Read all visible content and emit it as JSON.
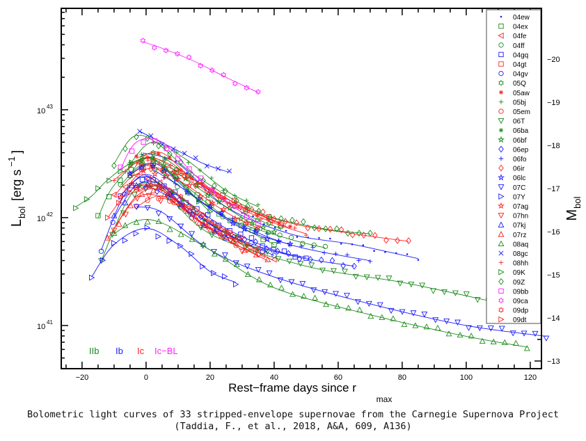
{
  "chart_data": {
    "type": "scatter",
    "title": "",
    "xlabel": "Rest−frame days since r",
    "xlabel_sub": "max",
    "ylabel": "L",
    "ylabel_sub": "bol",
    "ylabel_units": "[erg s",
    "ylabel_exp": "−1",
    "ylabel_close": "]",
    "y2label": "M",
    "y2label_sub": "bol",
    "xlim": [
      -26.5,
      123.5
    ],
    "ylog_lim": [
      40.6,
      43.94
    ],
    "yscale": "log",
    "xticks": [
      -20,
      0,
      20,
      40,
      60,
      80,
      100,
      120
    ],
    "yticks": [
      {
        "base": "10",
        "exp": "43",
        "log": 43
      },
      {
        "base": "10",
        "exp": "42",
        "log": 42
      },
      {
        "base": "10",
        "exp": "41",
        "log": 41
      }
    ],
    "y2ticks": [
      -20,
      -19,
      -18,
      -17,
      -16,
      -15,
      -14,
      -13
    ],
    "type_labels": [
      {
        "text": "IIb",
        "color": "#1a8a1a"
      },
      {
        "text": "Ib",
        "color": "#1a1aff"
      },
      {
        "text": "Ic",
        "color": "#ff2020"
      },
      {
        "text": "Ic−BL",
        "color": "#ff20ff"
      }
    ],
    "legend_position": "top-right",
    "series": [
      {
        "name": "04ew",
        "color": "#1a1aff",
        "marker": "dot",
        "points": [
          [
            -1,
            42.6
          ],
          [
            10,
            42.5
          ],
          [
            25,
            42.1
          ],
          [
            45,
            41.85
          ],
          [
            65,
            41.75
          ],
          [
            85,
            41.62
          ]
        ]
      },
      {
        "name": "04ex",
        "color": "#1a8a1a",
        "marker": "square",
        "points": [
          [
            -15,
            42.0
          ],
          [
            -10,
            42.3
          ],
          [
            0,
            42.55
          ],
          [
            10,
            42.35
          ],
          [
            25,
            42.0
          ],
          [
            40,
            41.75
          ]
        ]
      },
      {
        "name": "04fe",
        "color": "#ff2020",
        "marker": "tri-left",
        "points": [
          [
            -10,
            42.2
          ],
          [
            -3,
            42.4
          ],
          [
            5,
            42.3
          ],
          [
            15,
            42.0
          ],
          [
            30,
            41.75
          ],
          [
            40,
            41.6
          ]
        ]
      },
      {
        "name": "04ff",
        "color": "#1a8a1a",
        "marker": "circle",
        "points": [
          [
            -8,
            42.3
          ],
          [
            0,
            42.5
          ],
          [
            10,
            42.3
          ],
          [
            25,
            42.0
          ],
          [
            45,
            41.8
          ],
          [
            56,
            41.72
          ]
        ]
      },
      {
        "name": "04gq",
        "color": "#1a1aff",
        "marker": "square",
        "points": [
          [
            -8,
            42.2
          ],
          [
            0,
            42.4
          ],
          [
            10,
            42.2
          ],
          [
            25,
            41.9
          ],
          [
            40,
            41.7
          ],
          [
            50,
            41.63
          ]
        ]
      },
      {
        "name": "04gt",
        "color": "#ff2020",
        "marker": "square",
        "points": [
          [
            -5,
            42.4
          ],
          [
            3,
            42.5
          ],
          [
            15,
            42.35
          ],
          [
            30,
            42.1
          ],
          [
            42,
            41.95
          ]
        ]
      },
      {
        "name": "04gv",
        "color": "#1a1aff",
        "marker": "circle",
        "points": [
          [
            -14,
            41.7
          ],
          [
            -7,
            42.2
          ],
          [
            0,
            42.38
          ],
          [
            10,
            42.15
          ],
          [
            25,
            41.85
          ],
          [
            40,
            41.65
          ]
        ]
      },
      {
        "name": "05Q",
        "color": "#1a8a1a",
        "marker": "hex",
        "points": [
          [
            -5,
            42.4
          ],
          [
            2,
            42.6
          ],
          [
            15,
            42.35
          ],
          [
            30,
            42.05
          ],
          [
            42,
            41.9
          ]
        ]
      },
      {
        "name": "05aw",
        "color": "#ff2020",
        "marker": "asterisk",
        "points": [
          [
            -3,
            42.55
          ],
          [
            5,
            42.6
          ],
          [
            15,
            42.35
          ],
          [
            30,
            42.1
          ],
          [
            45,
            41.9
          ]
        ]
      },
      {
        "name": "05bj",
        "color": "#1a8a1a",
        "marker": "plus",
        "points": [
          [
            -5,
            42.5
          ],
          [
            2,
            42.7
          ],
          [
            12,
            42.55
          ],
          [
            25,
            42.25
          ],
          [
            35,
            42.1
          ]
        ]
      },
      {
        "name": "05em",
        "color": "#ff2020",
        "marker": "circle",
        "points": [
          [
            -3,
            42.1
          ],
          [
            5,
            42.2
          ],
          [
            15,
            42.0
          ],
          [
            25,
            41.8
          ],
          [
            35,
            41.65
          ]
        ]
      },
      {
        "name": "06T",
        "color": "#1a8a1a",
        "marker": "tri-down",
        "points": [
          [
            -14,
            41.6
          ],
          [
            -5,
            42.2
          ],
          [
            3,
            42.3
          ],
          [
            20,
            41.85
          ],
          [
            50,
            41.55
          ],
          [
            80,
            41.4
          ],
          [
            107,
            41.23
          ]
        ]
      },
      {
        "name": "06ba",
        "color": "#1a8a1a",
        "marker": "asterisk",
        "points": [
          [
            -2,
            42.3
          ],
          [
            8,
            42.25
          ],
          [
            20,
            41.95
          ],
          [
            35,
            41.7
          ]
        ]
      },
      {
        "name": "06bf",
        "color": "#1a8a1a",
        "marker": "star",
        "points": [
          [
            -5,
            42.5
          ],
          [
            3,
            42.55
          ],
          [
            15,
            42.3
          ],
          [
            30,
            42.0
          ],
          [
            40,
            41.85
          ]
        ]
      },
      {
        "name": "06ep",
        "color": "#1a1aff",
        "marker": "diamond",
        "points": [
          [
            0,
            42.3
          ],
          [
            10,
            42.15
          ],
          [
            25,
            41.85
          ],
          [
            45,
            41.65
          ],
          [
            65,
            41.55
          ]
        ]
      },
      {
        "name": "06fo",
        "color": "#1a1aff",
        "marker": "plus",
        "points": [
          [
            2,
            42.45
          ],
          [
            10,
            42.3
          ],
          [
            25,
            42.0
          ],
          [
            45,
            41.75
          ],
          [
            70,
            41.6
          ]
        ]
      },
      {
        "name": "06ir",
        "color": "#ff2020",
        "marker": "diamond",
        "points": [
          [
            -2,
            42.5
          ],
          [
            10,
            42.4
          ],
          [
            25,
            42.15
          ],
          [
            45,
            41.95
          ],
          [
            65,
            41.85
          ],
          [
            82,
            41.78
          ]
        ]
      },
      {
        "name": "06lc",
        "color": "#1a1aff",
        "marker": "star",
        "points": [
          [
            -5,
            42.4
          ],
          [
            3,
            42.5
          ],
          [
            15,
            42.2
          ],
          [
            30,
            41.9
          ],
          [
            45,
            41.75
          ]
        ]
      },
      {
        "name": "07C",
        "color": "#1a1aff",
        "marker": "tri-down",
        "points": [
          [
            -3,
            42.1
          ],
          [
            5,
            42.05
          ],
          [
            20,
            41.7
          ],
          [
            40,
            41.45
          ],
          [
            70,
            41.2
          ],
          [
            100,
            41.0
          ],
          [
            125,
            40.9
          ]
        ]
      },
      {
        "name": "07Y",
        "color": "#1a1aff",
        "marker": "tri-right",
        "points": [
          [
            -17,
            41.45
          ],
          [
            -10,
            41.75
          ],
          [
            0,
            41.9
          ],
          [
            10,
            41.75
          ],
          [
            20,
            41.5
          ],
          [
            28,
            41.4
          ]
        ]
      },
      {
        "name": "07ag",
        "color": "#ff2020",
        "marker": "star",
        "points": [
          [
            -8,
            42.2
          ],
          [
            0,
            42.45
          ],
          [
            10,
            42.35
          ],
          [
            25,
            42.05
          ],
          [
            35,
            41.9
          ]
        ]
      },
      {
        "name": "07hn",
        "color": "#ff2020",
        "marker": "tri-down",
        "points": [
          [
            -10,
            41.9
          ],
          [
            -2,
            42.2
          ],
          [
            8,
            42.15
          ],
          [
            20,
            41.9
          ],
          [
            30,
            41.7
          ]
        ]
      },
      {
        "name": "07kj",
        "color": "#1a1aff",
        "marker": "tri-up",
        "points": [
          [
            -10,
            42.0
          ],
          [
            -3,
            42.3
          ],
          [
            5,
            42.3
          ],
          [
            15,
            42.0
          ],
          [
            25,
            41.8
          ]
        ]
      },
      {
        "name": "07rz",
        "color": "#ff2020",
        "marker": "tri-up",
        "points": [
          [
            -12,
            41.8
          ],
          [
            -3,
            42.2
          ],
          [
            5,
            42.25
          ],
          [
            15,
            42.0
          ],
          [
            25,
            41.8
          ],
          [
            38,
            41.6
          ]
        ]
      },
      {
        "name": "08aq",
        "color": "#1a8a1a",
        "marker": "tri-up",
        "points": [
          [
            -10,
            41.85
          ],
          [
            -3,
            41.97
          ],
          [
            5,
            41.95
          ],
          [
            20,
            41.7
          ],
          [
            40,
            41.35
          ],
          [
            70,
            41.1
          ],
          [
            100,
            40.9
          ],
          [
            119,
            40.8
          ]
        ]
      },
      {
        "name": "08gc",
        "color": "#1a1aff",
        "marker": "x",
        "points": [
          [
            -2,
            42.8
          ],
          [
            8,
            42.65
          ],
          [
            18,
            42.5
          ],
          [
            26,
            42.42
          ]
        ]
      },
      {
        "name": "08hh",
        "color": "#ff2020",
        "marker": "plus",
        "points": [
          [
            -10,
            42.35
          ],
          [
            0,
            42.55
          ],
          [
            10,
            42.45
          ],
          [
            25,
            42.15
          ],
          [
            40,
            41.95
          ],
          [
            50,
            41.85
          ]
        ]
      },
      {
        "name": "09K",
        "color": "#1a8a1a",
        "marker": "tri-right",
        "points": [
          [
            -22,
            42.1
          ],
          [
            -17,
            42.2
          ],
          [
            -12,
            42.35
          ],
          [
            -5,
            42.5
          ],
          [
            2,
            42.55
          ],
          [
            10,
            42.35
          ],
          [
            20,
            42.05
          ]
        ]
      },
      {
        "name": "09Z",
        "color": "#1a8a1a",
        "marker": "diamond",
        "points": [
          [
            -10,
            42.5
          ],
          [
            -4,
            42.75
          ],
          [
            3,
            42.7
          ],
          [
            15,
            42.4
          ],
          [
            35,
            42.05
          ],
          [
            55,
            41.9
          ],
          [
            70,
            41.85
          ]
        ]
      },
      {
        "name": "09bb",
        "color": "#ff20ff",
        "marker": "square",
        "points": [
          [
            -8,
            42.45
          ],
          [
            -3,
            42.7
          ],
          [
            5,
            42.7
          ],
          [
            15,
            42.4
          ],
          [
            25,
            42.15
          ],
          [
            35,
            41.95
          ]
        ]
      },
      {
        "name": "09ca",
        "color": "#ff20ff",
        "marker": "hex",
        "points": [
          [
            -1,
            43.63
          ],
          [
            5,
            43.57
          ],
          [
            15,
            43.45
          ],
          [
            25,
            43.3
          ],
          [
            35,
            43.16
          ]
        ]
      },
      {
        "name": "09dp",
        "color": "#ff2020",
        "marker": "hex",
        "points": [
          [
            -3,
            42.25
          ],
          [
            5,
            42.3
          ],
          [
            15,
            42.1
          ],
          [
            25,
            41.85
          ],
          [
            35,
            41.7
          ]
        ]
      },
      {
        "name": "09dt",
        "color": "#ff2020",
        "marker": "tri-right",
        "points": [
          [
            -12,
            42.0
          ],
          [
            -5,
            42.25
          ],
          [
            3,
            42.3
          ],
          [
            15,
            42.05
          ],
          [
            30,
            41.8
          ]
        ]
      }
    ]
  },
  "caption": {
    "line1": "Bolometric light curves of 33 stripped-envelope supernovae from the Carnegie Supernova Project",
    "line2": "(Taddia, F., et al., 2018, A&A, 609, A136)"
  }
}
